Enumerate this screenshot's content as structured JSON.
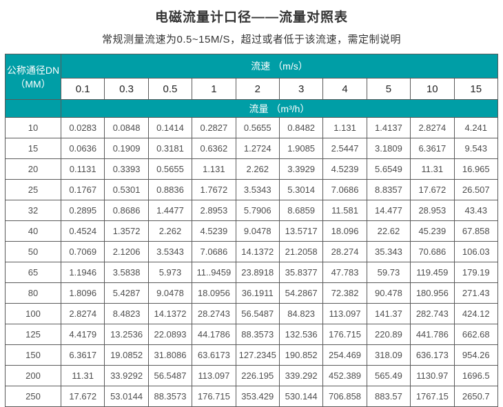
{
  "header": {
    "title": "电磁流量计口径——流量对照表",
    "subtitle": "常规测量流速为0.5~15M/S，超过或者低于该流速，需定制说明"
  },
  "colors": {
    "teal": "#009EA6",
    "border": "#595959",
    "cell_text": "#4d4d4d"
  },
  "table": {
    "dn_header_line1": "公称通径DN",
    "dn_header_line2": "（MM）",
    "velocity_group_label": "流速 （m/s）",
    "flow_group_label": "流量 （m³/h）",
    "velocities": [
      "0.1",
      "0.3",
      "0.5",
      "1",
      "2",
      "3",
      "4",
      "5",
      "10",
      "15"
    ],
    "rows": [
      {
        "dn": "10",
        "values": [
          "0.0283",
          "0.0848",
          "0.1414",
          "0.2827",
          "0.5655",
          "0.8482",
          "1.131",
          "1.4137",
          "2.8274",
          "4.241"
        ]
      },
      {
        "dn": "15",
        "values": [
          "0.0636",
          "0.1909",
          "0.3181",
          "0.6362",
          "1.2724",
          "1.9085",
          "2.5447",
          "3.1809",
          "6.3617",
          "9.543"
        ]
      },
      {
        "dn": "20",
        "values": [
          "0.1131",
          "0.3393",
          "0.5655",
          "1.131",
          "2.262",
          "3.3929",
          "4.5239",
          "5.6549",
          "11.31",
          "16.965"
        ]
      },
      {
        "dn": "25",
        "values": [
          "0.1767",
          "0.5301",
          "0.8836",
          "1.7672",
          "3.5343",
          "5.3014",
          "7.0686",
          "8.8357",
          "17.672",
          "26.507"
        ]
      },
      {
        "dn": "32",
        "values": [
          "0.2895",
          "0.8686",
          "1.4477",
          "2.8953",
          "5.7906",
          "8.6859",
          "11.581",
          "14.477",
          "28.953",
          "43.43"
        ]
      },
      {
        "dn": "40",
        "values": [
          "0.4524",
          "1.3572",
          "2.262",
          "4.5239",
          "9.0478",
          "13.5717",
          "18.096",
          "22.62",
          "45.239",
          "67.858"
        ]
      },
      {
        "dn": "50",
        "values": [
          "0.7069",
          "2.1206",
          "3.5343",
          "7.0686",
          "14.1372",
          "21.2058",
          "28.274",
          "35.343",
          "70.686",
          "106.03"
        ]
      },
      {
        "dn": "65",
        "values": [
          "1.1946",
          "3.5838",
          "5.973",
          "11..9459",
          "23.8918",
          "35.8377",
          "47.783",
          "59.73",
          "119.459",
          "179.19"
        ]
      },
      {
        "dn": "80",
        "values": [
          "1.8096",
          "5.4287",
          "9.0478",
          "18.0956",
          "36.1911",
          "54.2867",
          "72.382",
          "90.478",
          "180.956",
          "271.43"
        ]
      },
      {
        "dn": "100",
        "values": [
          "2.8274",
          "8.4823",
          "14.1372",
          "28.2743",
          "56.5487",
          "84.823",
          "113.097",
          "141.37",
          "282.743",
          "424.12"
        ]
      },
      {
        "dn": "125",
        "values": [
          "4.4179",
          "13.2536",
          "22.0893",
          "44.1786",
          "88.3573",
          "132.536",
          "176.715",
          "220.89",
          "441.786",
          "662.68"
        ]
      },
      {
        "dn": "150",
        "values": [
          "6.3617",
          "19.0852",
          "31.8086",
          "63.6173",
          "127.2345",
          "190.852",
          "254.469",
          "318.09",
          "636.173",
          "954.26"
        ]
      },
      {
        "dn": "200",
        "values": [
          "11.31",
          "33.9292",
          "56.5487",
          "113.097",
          "226.195",
          "339.292",
          "452.389",
          "565.49",
          "1130.97",
          "1696.5"
        ]
      },
      {
        "dn": "250",
        "values": [
          "17.672",
          "53.0144",
          "88.3573",
          "176.715",
          "353.429",
          "530.144",
          "706.858",
          "883.57",
          "1767.15",
          "2650.7"
        ]
      }
    ]
  }
}
